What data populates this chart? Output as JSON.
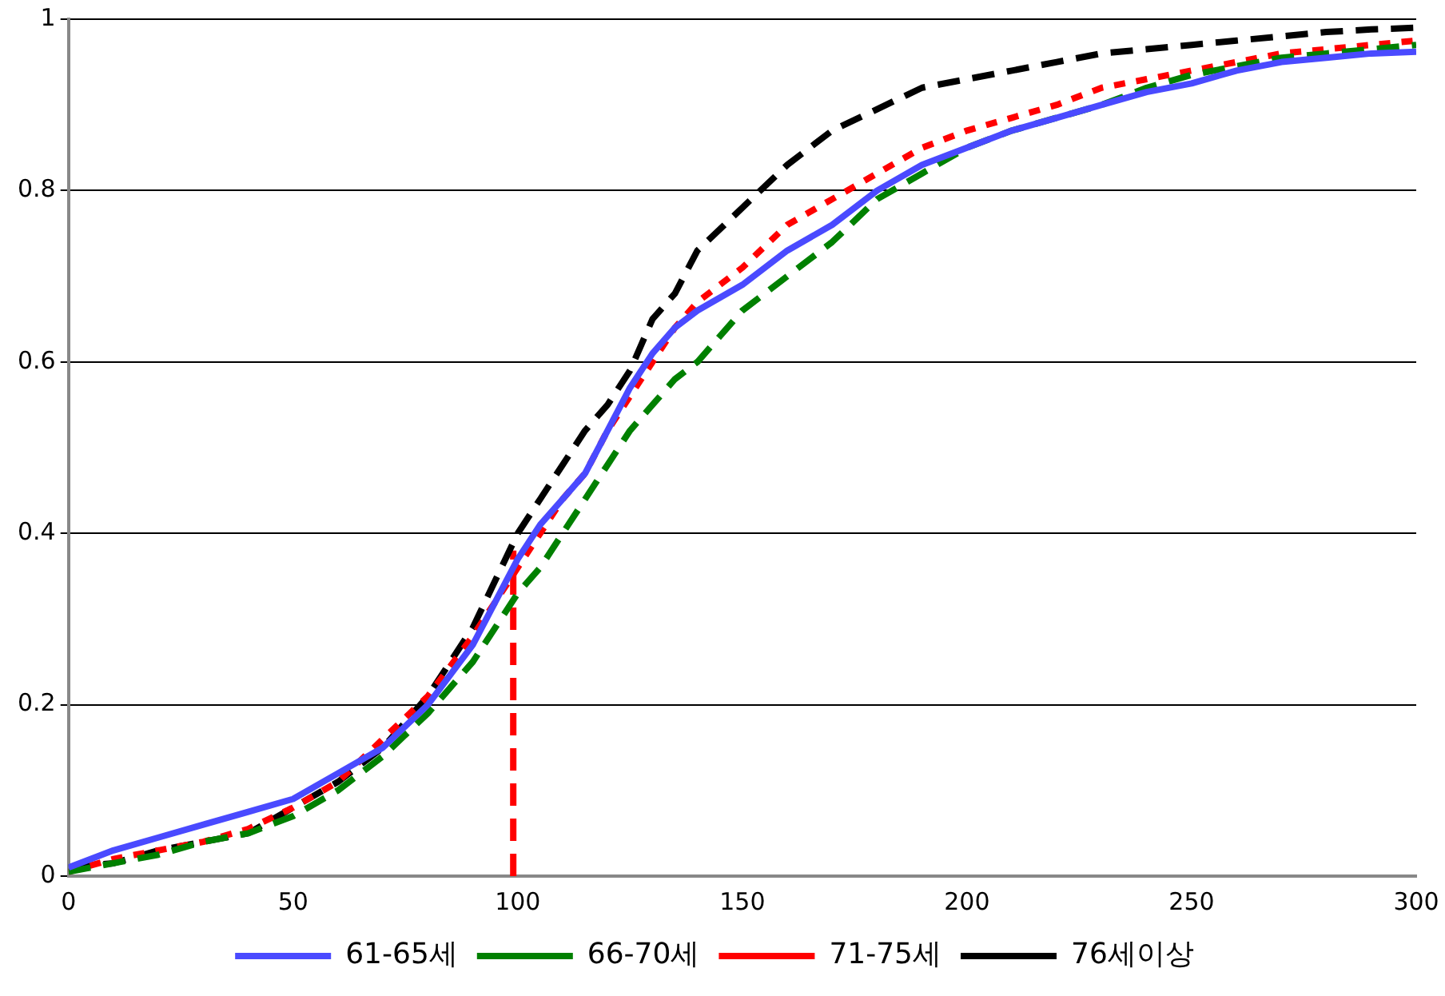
{
  "chart_data": {
    "type": "line",
    "x": [
      0,
      10,
      20,
      30,
      40,
      50,
      60,
      70,
      80,
      90,
      100,
      105,
      110,
      115,
      120,
      125,
      130,
      135,
      140,
      150,
      160,
      170,
      180,
      190,
      200,
      210,
      220,
      230,
      240,
      250,
      260,
      270,
      280,
      290,
      300
    ],
    "series": [
      {
        "name": "61-65세",
        "color": "#4a4aff",
        "line_style": "solid",
        "values": [
          0.01,
          0.03,
          0.045,
          0.06,
          0.075,
          0.09,
          0.12,
          0.15,
          0.2,
          0.27,
          0.37,
          0.41,
          0.44,
          0.47,
          0.52,
          0.57,
          0.61,
          0.64,
          0.66,
          0.69,
          0.73,
          0.76,
          0.8,
          0.83,
          0.85,
          0.87,
          0.885,
          0.9,
          0.915,
          0.925,
          0.94,
          0.95,
          0.955,
          0.96,
          0.962
        ]
      },
      {
        "name": "66-70세",
        "color": "#008000",
        "line_style": "dashed",
        "values": [
          0.005,
          0.015,
          0.025,
          0.04,
          0.05,
          0.07,
          0.1,
          0.14,
          0.19,
          0.25,
          0.33,
          0.36,
          0.4,
          0.44,
          0.48,
          0.52,
          0.55,
          0.58,
          0.6,
          0.66,
          0.7,
          0.74,
          0.79,
          0.82,
          0.85,
          0.87,
          0.885,
          0.9,
          0.92,
          0.935,
          0.945,
          0.955,
          0.96,
          0.965,
          0.97
        ]
      },
      {
        "name": "71-75세",
        "color": "#ff0000",
        "line_style": "dotted",
        "values": [
          0.005,
          0.02,
          0.03,
          0.04,
          0.055,
          0.08,
          0.11,
          0.16,
          0.21,
          0.28,
          0.36,
          0.4,
          0.44,
          0.47,
          0.52,
          0.56,
          0.6,
          0.64,
          0.67,
          0.71,
          0.76,
          0.79,
          0.82,
          0.85,
          0.87,
          0.885,
          0.9,
          0.92,
          0.93,
          0.94,
          0.95,
          0.96,
          0.965,
          0.97,
          0.975
        ]
      },
      {
        "name": "76세이상",
        "color": "#000000",
        "line_style": "dashed",
        "values": [
          0.01,
          0.015,
          0.03,
          0.04,
          0.05,
          0.08,
          0.11,
          0.15,
          0.21,
          0.29,
          0.4,
          0.44,
          0.48,
          0.52,
          0.55,
          0.59,
          0.65,
          0.68,
          0.73,
          0.78,
          0.83,
          0.87,
          0.895,
          0.92,
          0.93,
          0.94,
          0.95,
          0.96,
          0.965,
          0.97,
          0.975,
          0.98,
          0.985,
          0.988,
          0.99
        ]
      },
      {
        "type": "line",
        "color": "#ff0000",
        "line_style": "dashed",
        "x": [
          99,
          99
        ],
        "values": [
          0,
          0.38
        ]
      }
    ],
    "xlim": [
      0,
      300
    ],
    "xticks": [
      0,
      50,
      100,
      150,
      200,
      250,
      300
    ],
    "ylim": [
      0,
      1
    ],
    "yticks": [
      0,
      0.2,
      0.4,
      0.6,
      0.8,
      1
    ],
    "grid": "y",
    "legend": "bottom",
    "marker": "none"
  }
}
